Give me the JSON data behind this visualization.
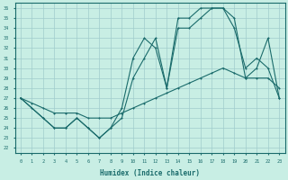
{
  "xlabel": "Humidex (Indice chaleur)",
  "xlim": [
    -0.5,
    23.5
  ],
  "ylim": [
    21.5,
    36.5
  ],
  "yticks": [
    22,
    23,
    24,
    25,
    26,
    27,
    28,
    29,
    30,
    31,
    32,
    33,
    34,
    35,
    36
  ],
  "xticks": [
    0,
    1,
    2,
    3,
    4,
    5,
    6,
    7,
    8,
    9,
    10,
    11,
    12,
    13,
    14,
    15,
    16,
    17,
    18,
    19,
    20,
    21,
    22,
    23
  ],
  "bg_color": "#c8eee4",
  "line_color": "#1a6b6b",
  "grid_color": "#a0cccc",
  "line1_x": [
    0,
    1,
    2,
    3,
    4,
    5,
    6,
    7,
    8,
    9,
    10,
    11,
    12,
    13,
    14,
    15,
    16,
    17,
    18,
    19,
    20,
    21,
    22,
    23
  ],
  "line1_y": [
    27,
    26,
    25,
    24,
    24,
    25,
    24,
    23,
    24,
    26,
    31,
    33,
    32,
    28,
    35,
    35,
    36,
    36,
    36,
    34,
    30,
    31,
    30,
    27
  ],
  "line2_x": [
    0,
    2,
    3,
    4,
    5,
    6,
    7,
    8,
    9,
    10,
    11,
    12,
    13,
    14,
    15,
    16,
    17,
    18,
    19,
    20,
    21,
    22,
    23
  ],
  "line2_y": [
    27,
    25,
    24,
    24,
    25,
    24,
    23,
    24,
    25,
    29,
    31,
    33,
    28,
    34,
    34,
    35,
    36,
    36,
    35,
    29,
    30,
    33,
    27
  ],
  "line3_x": [
    0,
    1,
    2,
    3,
    4,
    5,
    6,
    7,
    8,
    9,
    10,
    11,
    12,
    13,
    14,
    15,
    16,
    17,
    18,
    19,
    20,
    21,
    22,
    23
  ],
  "line3_y": [
    27,
    26.5,
    26,
    25.5,
    25.5,
    25.5,
    25,
    25,
    25,
    25.5,
    26,
    26.5,
    27,
    27.5,
    28,
    28.5,
    29,
    29.5,
    30,
    29.5,
    29,
    29,
    29,
    28
  ]
}
